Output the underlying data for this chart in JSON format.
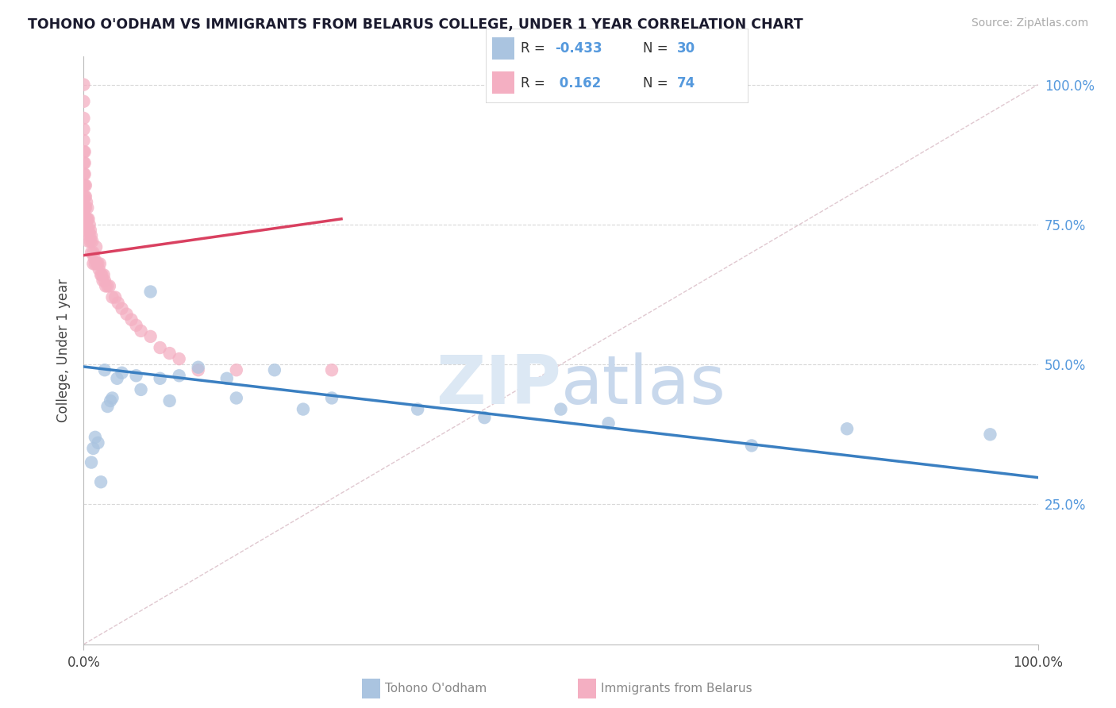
{
  "title": "TOHONO O'ODHAM VS IMMIGRANTS FROM BELARUS COLLEGE, UNDER 1 YEAR CORRELATION CHART",
  "source": "Source: ZipAtlas.com",
  "ylabel": "College, Under 1 year",
  "blue_label": "Tohono O'odham",
  "pink_label": "Immigrants from Belarus",
  "blue_R": -0.433,
  "blue_N": 30,
  "pink_R": 0.162,
  "pink_N": 74,
  "blue_color": "#aac4e0",
  "pink_color": "#f4afc2",
  "blue_line_color": "#3a7fc1",
  "pink_line_color": "#d94060",
  "ref_line_color": "#e0c8d0",
  "grid_color": "#d8d8d8",
  "ytick_color": "#5599dd",
  "watermark_color": "#dce8f4",
  "blue_points_x": [
    0.008,
    0.01,
    0.012,
    0.015,
    0.018,
    0.022,
    0.025,
    0.028,
    0.03,
    0.035,
    0.04,
    0.055,
    0.06,
    0.07,
    0.08,
    0.09,
    0.1,
    0.12,
    0.15,
    0.16,
    0.2,
    0.23,
    0.26,
    0.35,
    0.42,
    0.5,
    0.55,
    0.7,
    0.8,
    0.95
  ],
  "blue_points_y": [
    0.325,
    0.35,
    0.37,
    0.36,
    0.29,
    0.49,
    0.425,
    0.435,
    0.44,
    0.475,
    0.485,
    0.48,
    0.455,
    0.63,
    0.475,
    0.435,
    0.48,
    0.495,
    0.475,
    0.44,
    0.49,
    0.42,
    0.44,
    0.42,
    0.405,
    0.42,
    0.395,
    0.355,
    0.385,
    0.375
  ],
  "pink_points_x": [
    0.0,
    0.0,
    0.0,
    0.0,
    0.0,
    0.0,
    0.0,
    0.0,
    0.0,
    0.0,
    0.0,
    0.0,
    0.0,
    0.0,
    0.001,
    0.001,
    0.001,
    0.001,
    0.001,
    0.001,
    0.001,
    0.002,
    0.002,
    0.002,
    0.002,
    0.002,
    0.003,
    0.003,
    0.003,
    0.004,
    0.004,
    0.004,
    0.005,
    0.005,
    0.005,
    0.006,
    0.006,
    0.007,
    0.007,
    0.008,
    0.008,
    0.009,
    0.01,
    0.01,
    0.011,
    0.012,
    0.013,
    0.014,
    0.015,
    0.016,
    0.017,
    0.018,
    0.019,
    0.02,
    0.021,
    0.022,
    0.023,
    0.025,
    0.027,
    0.03,
    0.033,
    0.036,
    0.04,
    0.045,
    0.05,
    0.055,
    0.06,
    0.07,
    0.08,
    0.09,
    0.1,
    0.12,
    0.16,
    0.26
  ],
  "pink_points_y": [
    1.0,
    0.97,
    0.94,
    0.92,
    0.9,
    0.88,
    0.86,
    0.84,
    0.82,
    0.8,
    0.785,
    0.77,
    0.76,
    0.75,
    0.88,
    0.86,
    0.84,
    0.82,
    0.8,
    0.78,
    0.76,
    0.82,
    0.8,
    0.78,
    0.76,
    0.74,
    0.79,
    0.76,
    0.75,
    0.78,
    0.76,
    0.74,
    0.76,
    0.74,
    0.72,
    0.75,
    0.73,
    0.74,
    0.72,
    0.73,
    0.7,
    0.72,
    0.7,
    0.68,
    0.69,
    0.68,
    0.71,
    0.68,
    0.68,
    0.67,
    0.68,
    0.66,
    0.66,
    0.65,
    0.66,
    0.65,
    0.64,
    0.64,
    0.64,
    0.62,
    0.62,
    0.61,
    0.6,
    0.59,
    0.58,
    0.57,
    0.56,
    0.55,
    0.53,
    0.52,
    0.51,
    0.49,
    0.49,
    0.49
  ]
}
